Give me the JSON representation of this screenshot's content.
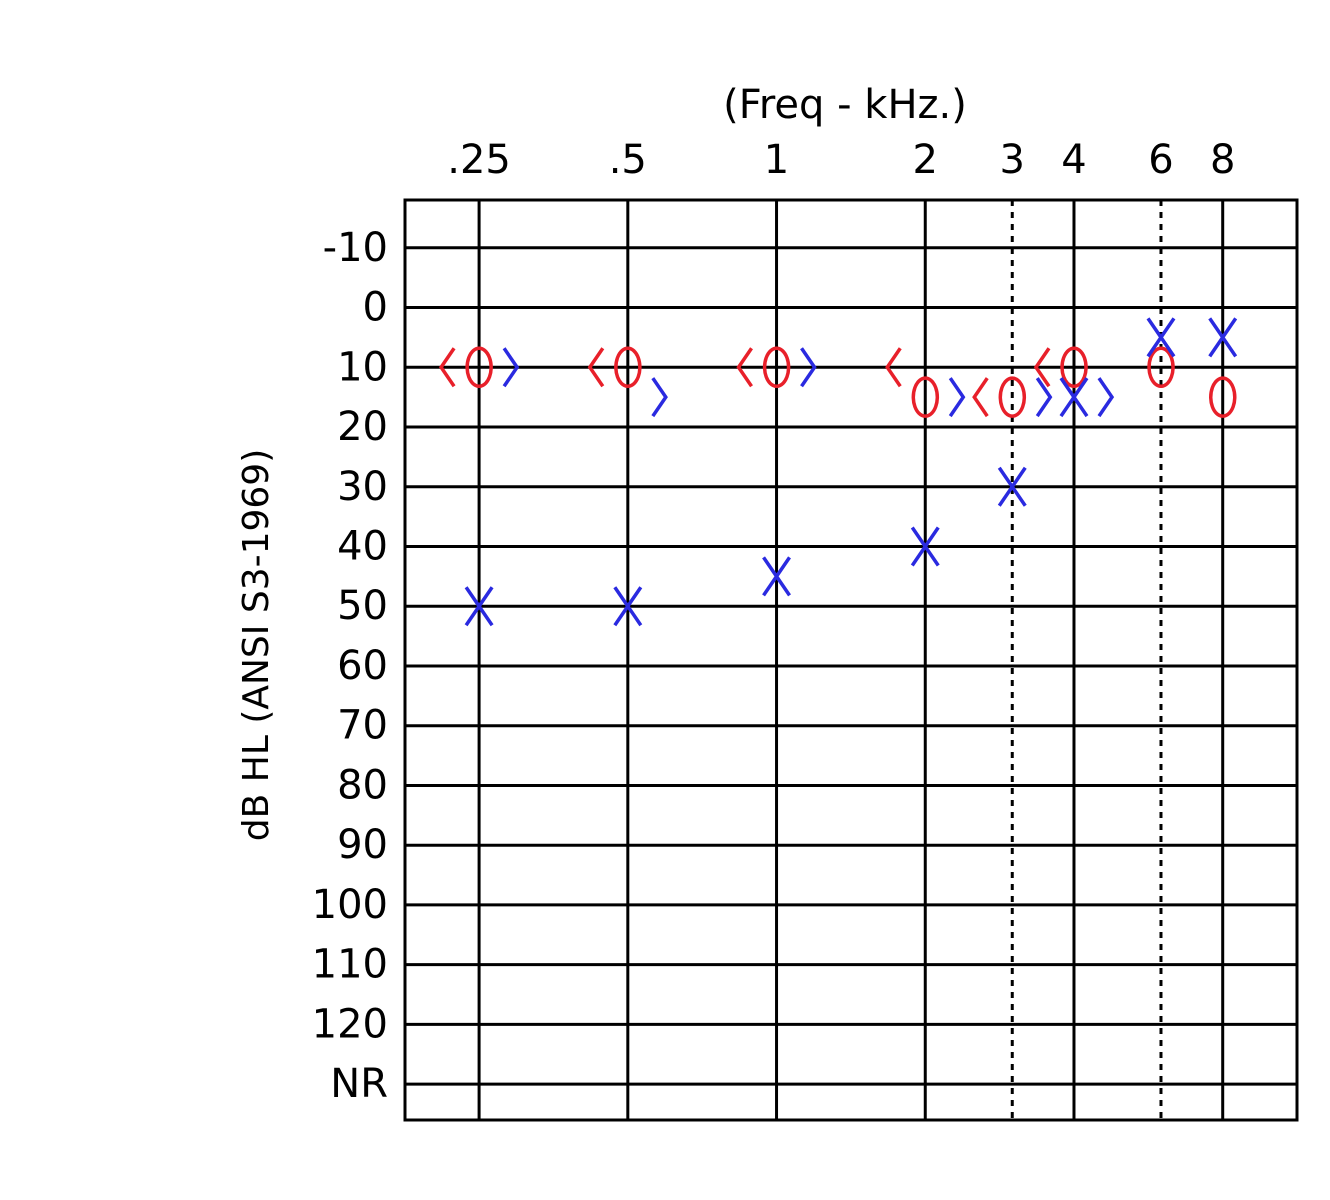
{
  "chart_data": {
    "type": "scatter",
    "title": "(Freq - kHz.)",
    "y_label": "dB HL (ANSI S3-1969)",
    "x": [
      0.25,
      0.5,
      1,
      2,
      3,
      4,
      6,
      8
    ],
    "xscale": "log",
    "xlim": [
      0.177,
      11.31
    ],
    "xticks": [
      {
        "value": 0.25,
        "label": ".25"
      },
      {
        "value": 0.5,
        "label": ".5"
      },
      1,
      2,
      3,
      4,
      6,
      8
    ],
    "ylim": [
      136,
      -18
    ],
    "yticks": [
      -10,
      0,
      10,
      20,
      30,
      40,
      50,
      60,
      70,
      80,
      90,
      100,
      110,
      120,
      {
        "value": 130,
        "label": "NR"
      }
    ],
    "grid": true,
    "series": [
      {
        "color": "#e8202a",
        "marker": "o",
        "values": [
          10,
          10,
          10,
          15,
          15,
          10,
          10,
          15
        ]
      },
      {
        "color": "#2a2ae0",
        "marker": "x",
        "values": [
          50,
          50,
          45,
          40,
          30,
          15,
          5,
          5
        ]
      },
      {
        "color": "#e8202a",
        "marker": "left",
        "values": [
          10,
          10,
          10,
          10,
          15,
          10,
          null,
          null
        ]
      },
      {
        "color": "#2a2ae0",
        "marker": "right",
        "values": [
          10,
          15,
          10,
          15,
          15,
          15,
          null,
          null
        ]
      }
    ]
  }
}
